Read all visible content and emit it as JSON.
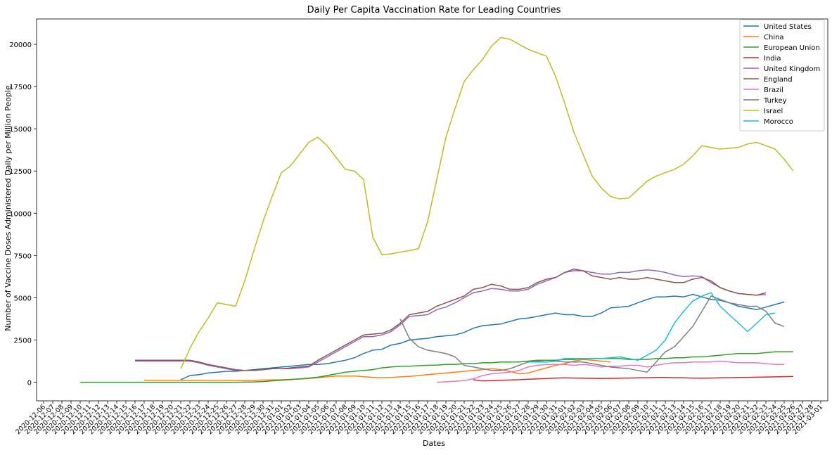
{
  "chart_data": {
    "type": "line",
    "title": "Daily Per Capita Vaccination Rate for Leading Countries",
    "xlabel": "Dates",
    "ylabel": "Number of Vaccine Doses Administered Daily per Million People",
    "ylim": [
      -1100,
      21500
    ],
    "yticks": [
      0,
      2500,
      5000,
      7500,
      10000,
      12500,
      15000,
      17500,
      20000
    ],
    "ytick_labels": [
      "0",
      "2500",
      "5000",
      "7500",
      "10000",
      "12500",
      "15000",
      "17500",
      "20000"
    ],
    "grid": false,
    "legend_position": "top-right",
    "x": [
      "2020-12-06",
      "2020-12-07",
      "2020-12-08",
      "2020-12-09",
      "2020-12-10",
      "2020-12-11",
      "2020-12-12",
      "2020-12-13",
      "2020-12-14",
      "2020-12-15",
      "2020-12-16",
      "2020-12-17",
      "2020-12-18",
      "2020-12-19",
      "2020-12-20",
      "2020-12-21",
      "2020-12-22",
      "2020-12-23",
      "2020-12-24",
      "2020-12-25",
      "2020-12-26",
      "2020-12-27",
      "2020-12-28",
      "2020-12-29",
      "2020-12-30",
      "2020-12-31",
      "2021-01-01",
      "2021-01-02",
      "2021-01-03",
      "2021-01-04",
      "2021-01-05",
      "2021-01-06",
      "2021-01-07",
      "2021-01-08",
      "2021-01-09",
      "2021-01-10",
      "2021-01-11",
      "2021-01-12",
      "2021-01-13",
      "2021-01-14",
      "2021-01-15",
      "2021-01-16",
      "2021-01-17",
      "2021-01-18",
      "2021-01-19",
      "2021-01-20",
      "2021-01-21",
      "2021-01-22",
      "2021-01-23",
      "2021-01-24",
      "2021-01-25",
      "2021-01-26",
      "2021-01-27",
      "2021-01-28",
      "2021-01-29",
      "2021-01-30",
      "2021-01-31",
      "2021-02-01",
      "2021-02-02",
      "2021-02-03",
      "2021-02-04",
      "2021-02-05",
      "2021-02-06",
      "2021-02-07",
      "2021-02-08",
      "2021-02-09",
      "2021-02-10",
      "2021-02-11",
      "2021-02-12",
      "2021-02-13",
      "2021-02-14",
      "2021-02-15",
      "2021-02-16",
      "2021-02-17",
      "2021-02-18",
      "2021-02-19",
      "2021-02-20",
      "2021-02-21",
      "2021-02-22",
      "2021-02-23",
      "2021-02-24",
      "2021-02-25",
      "2021-02-26",
      "2021-02-27",
      "2021-02-28",
      "2021-03-01"
    ],
    "x_tick_labels": [
      "2020-12-06",
      "2020-12-07",
      "2020-12-08",
      "2020-12-09",
      "2020-12-10",
      "2020-12-11",
      "2020-12-12",
      "2020-12-13",
      "2020-12-14",
      "2020-12-15",
      "2020-12-16",
      "2020-12-17",
      "2020-12-18",
      "2020-12-19",
      "2020-12-20",
      "2020-12-21",
      "2020-12-22",
      "2020-12-23",
      "2020-12-24",
      "2020-12-25",
      "2020-12-26",
      "2020-12-27",
      "2020-12-28",
      "2020-12-29",
      "2020-12-30",
      "2020-12-31",
      "2021-01-01",
      "2021-01-02",
      "2021-01-03",
      "2021-01-04",
      "2021-01-05",
      "2021-01-06",
      "2021-01-07",
      "2021-01-08",
      "2021-01-09",
      "2021-01-10",
      "2021-01-11",
      "2021-01-12",
      "2021-01-13",
      "2021-01-14",
      "2021-01-15",
      "2021-01-16",
      "2021-01-17",
      "2021-01-18",
      "2021-01-19",
      "2021-01-20",
      "2021-01-21",
      "2021-01-22",
      "2021-01-23",
      "2021-01-24",
      "2021-01-25",
      "2021-01-26",
      "2021-01-27",
      "2021-01-28",
      "2021-01-29",
      "2021-01-30",
      "2021-01-31",
      "2021-02-01",
      "2021-02-02",
      "2021-02-03",
      "2021-02-04",
      "2021-02-05",
      "2021-02-06",
      "2021-02-07",
      "2021-02-08",
      "2021-02-09",
      "2021-02-10",
      "2021-02-11",
      "2021-02-12",
      "2021-02-13",
      "2021-02-14",
      "2021-02-15",
      "2021-02-16",
      "2021-02-17",
      "2021-02-18",
      "2021-02-19",
      "2021-02-20",
      "2021-02-21",
      "2021-02-22",
      "2021-02-23",
      "2021-02-24",
      "2021-02-25",
      "2021-02-26",
      "2021-02-27",
      "2021-02-28",
      "2021-03-01"
    ],
    "series": [
      {
        "name": "United States",
        "color": "#1f77b4",
        "values": [
          null,
          null,
          null,
          null,
          null,
          null,
          null,
          null,
          null,
          null,
          null,
          null,
          null,
          null,
          null,
          150,
          400,
          450,
          550,
          600,
          650,
          650,
          700,
          750,
          800,
          850,
          900,
          950,
          1000,
          1050,
          1050,
          1100,
          1200,
          1300,
          1450,
          1700,
          1900,
          1950,
          2200,
          2300,
          2500,
          2550,
          2600,
          2700,
          2750,
          2800,
          2950,
          3200,
          3350,
          3400,
          3450,
          3600,
          3750,
          3800,
          3900,
          4000,
          4100,
          4000,
          4000,
          3900,
          3900,
          4100,
          4400,
          4450,
          4500,
          4700,
          4900,
          5050,
          5050,
          5100,
          5050,
          5200,
          5050,
          4900,
          4850,
          4700,
          4500,
          4400,
          4300,
          4450,
          4600,
          4750,
          null,
          null,
          null,
          null
        ]
      },
      {
        "name": "China",
        "color": "#ff7f0e",
        "values": [
          null,
          null,
          null,
          null,
          null,
          null,
          null,
          null,
          null,
          null,
          null,
          120,
          120,
          120,
          120,
          120,
          120,
          120,
          120,
          120,
          120,
          120,
          120,
          120,
          130,
          140,
          150,
          170,
          190,
          220,
          270,
          320,
          370,
          370,
          370,
          330,
          290,
          260,
          280,
          320,
          350,
          400,
          450,
          500,
          550,
          600,
          650,
          700,
          750,
          800,
          750,
          650,
          500,
          550,
          700,
          850,
          1000,
          1100,
          1250,
          1350,
          1300,
          1250,
          1200,
          null,
          null,
          null,
          null,
          null,
          null,
          null,
          null,
          null,
          null,
          null,
          null,
          null,
          null,
          null,
          null,
          null,
          null,
          null,
          null,
          null,
          null,
          null
        ]
      },
      {
        "name": "European Union",
        "color": "#2ca02c",
        "values": [
          null,
          null,
          null,
          null,
          0,
          0,
          0,
          0,
          0,
          0,
          0,
          0,
          0,
          0,
          0,
          0,
          0,
          0,
          0,
          0,
          0,
          0,
          10,
          20,
          40,
          80,
          120,
          160,
          200,
          250,
          300,
          400,
          500,
          600,
          650,
          700,
          750,
          850,
          900,
          950,
          950,
          980,
          1000,
          1020,
          1050,
          1050,
          1100,
          1100,
          1150,
          1150,
          1200,
          1200,
          1200,
          1250,
          1300,
          1300,
          1300,
          1350,
          1350,
          1400,
          1400,
          1400,
          1400,
          1400,
          1350,
          1350,
          1350,
          1400,
          1400,
          1450,
          1450,
          1500,
          1500,
          1550,
          1600,
          1650,
          1700,
          1700,
          1700,
          1750,
          1800,
          1800,
          1800,
          null,
          null,
          null
        ]
      },
      {
        "name": "India",
        "color": "#d62728",
        "values": [
          null,
          null,
          null,
          null,
          null,
          null,
          null,
          null,
          null,
          null,
          null,
          null,
          null,
          null,
          null,
          null,
          null,
          null,
          null,
          null,
          null,
          null,
          null,
          null,
          null,
          null,
          null,
          null,
          null,
          null,
          null,
          null,
          null,
          null,
          null,
          null,
          null,
          null,
          null,
          null,
          null,
          null,
          null,
          null,
          null,
          null,
          null,
          150,
          80,
          100,
          120,
          130,
          150,
          180,
          200,
          220,
          250,
          260,
          250,
          240,
          230,
          220,
          230,
          240,
          250,
          260,
          270,
          280,
          280,
          270,
          260,
          250,
          240,
          250,
          260,
          270,
          280,
          290,
          300,
          310,
          320,
          330,
          340,
          null,
          null,
          null
        ]
      },
      {
        "name": "United Kingdom",
        "color": "#9467bd",
        "values": [
          null,
          null,
          null,
          null,
          null,
          null,
          null,
          null,
          null,
          null,
          1250,
          1250,
          1250,
          1250,
          1250,
          1250,
          1250,
          1150,
          1000,
          900,
          800,
          700,
          700,
          700,
          750,
          800,
          800,
          800,
          850,
          900,
          1200,
          1500,
          1800,
          2100,
          2400,
          2700,
          2700,
          2800,
          3000,
          3400,
          3900,
          3950,
          4000,
          4300,
          4450,
          4700,
          5000,
          5300,
          5400,
          5550,
          5500,
          5400,
          5400,
          5500,
          5800,
          6000,
          6200,
          6500,
          6600,
          6600,
          6500,
          6400,
          6400,
          6500,
          6500,
          6600,
          6650,
          6600,
          6500,
          6350,
          6250,
          6300,
          6250,
          5900,
          5600,
          5400,
          5250,
          5200,
          5150,
          5200,
          null,
          null,
          null,
          null,
          null,
          null
        ]
      },
      {
        "name": "England",
        "color": "#8c564b",
        "values": [
          null,
          null,
          null,
          null,
          null,
          null,
          null,
          null,
          null,
          null,
          1300,
          1300,
          1300,
          1300,
          1300,
          1300,
          1300,
          1200,
          1050,
          950,
          850,
          750,
          700,
          700,
          750,
          800,
          800,
          850,
          900,
          950,
          1300,
          1600,
          1900,
          2200,
          2500,
          2800,
          2850,
          2900,
          3100,
          3500,
          4000,
          4100,
          4200,
          4500,
          4700,
          4900,
          5100,
          5500,
          5600,
          5800,
          5700,
          5500,
          5500,
          5600,
          5900,
          6100,
          6200,
          6500,
          6700,
          6600,
          6300,
          6200,
          6100,
          6200,
          6100,
          6100,
          6200,
          6100,
          6000,
          5900,
          5900,
          6100,
          6200,
          6000,
          5600,
          5400,
          5250,
          5200,
          5150,
          5300,
          null,
          null,
          null,
          null,
          null,
          null
        ]
      },
      {
        "name": "Brazil",
        "color": "#e377c2",
        "values": [
          null,
          null,
          null,
          null,
          null,
          null,
          null,
          null,
          null,
          null,
          null,
          null,
          null,
          null,
          null,
          null,
          null,
          null,
          null,
          null,
          null,
          null,
          null,
          null,
          null,
          null,
          null,
          null,
          null,
          null,
          null,
          null,
          null,
          null,
          null,
          null,
          null,
          null,
          null,
          null,
          null,
          null,
          null,
          0,
          30,
          60,
          100,
          200,
          400,
          500,
          550,
          600,
          700,
          900,
          1000,
          1050,
          1050,
          1050,
          1000,
          1050,
          1000,
          900,
          950,
          950,
          1000,
          1000,
          900,
          1000,
          1100,
          1150,
          1150,
          1200,
          1200,
          1200,
          1250,
          1200,
          1150,
          1150,
          1150,
          1100,
          1050,
          1050,
          null,
          null,
          null,
          null
        ]
      },
      {
        "name": "Turkey",
        "color": "#7f7f7f",
        "values": [
          null,
          null,
          null,
          null,
          null,
          null,
          null,
          null,
          null,
          null,
          null,
          null,
          null,
          null,
          null,
          null,
          null,
          null,
          null,
          null,
          null,
          null,
          null,
          null,
          null,
          null,
          null,
          null,
          null,
          null,
          null,
          null,
          null,
          null,
          null,
          null,
          null,
          null,
          null,
          3750,
          2600,
          2100,
          1900,
          1800,
          1700,
          1500,
          1000,
          900,
          800,
          700,
          700,
          800,
          1000,
          1200,
          1250,
          1200,
          1250,
          1200,
          1200,
          1200,
          1100,
          1000,
          900,
          850,
          800,
          700,
          600,
          1200,
          1800,
          2100,
          2700,
          3300,
          4200,
          5100,
          4900,
          4700,
          4600,
          4500,
          4500,
          4200,
          3500,
          3300,
          null,
          null,
          null,
          null
        ]
      },
      {
        "name": "Israel",
        "color": "#bcbd22",
        "values": [
          null,
          null,
          null,
          null,
          null,
          null,
          null,
          null,
          null,
          null,
          null,
          null,
          null,
          null,
          null,
          800,
          2000,
          3000,
          3800,
          4700,
          4600,
          4500,
          6000,
          7800,
          9500,
          11000,
          12400,
          12800,
          13500,
          14200,
          14500,
          14000,
          13300,
          12600,
          12500,
          12000,
          8600,
          7550,
          7600,
          7700,
          7800,
          7900,
          9500,
          12000,
          14500,
          16200,
          17800,
          18500,
          19100,
          19900,
          20400,
          20300,
          20000,
          19700,
          19500,
          19300,
          18100,
          16500,
          14800,
          13500,
          12200,
          11500,
          11000,
          10850,
          10900,
          11400,
          11900,
          12200,
          12400,
          12600,
          12900,
          13400,
          14000,
          13900,
          13800,
          13850,
          13900,
          14100,
          14200,
          14000,
          13800,
          13200,
          12500,
          null,
          null,
          null
        ]
      },
      {
        "name": "Morocco",
        "color": "#17becf",
        "values": [
          null,
          null,
          null,
          null,
          null,
          null,
          null,
          null,
          null,
          null,
          null,
          null,
          null,
          null,
          null,
          null,
          null,
          null,
          null,
          null,
          null,
          null,
          null,
          null,
          null,
          null,
          null,
          null,
          null,
          null,
          null,
          null,
          null,
          null,
          null,
          null,
          null,
          null,
          null,
          null,
          null,
          null,
          null,
          null,
          null,
          null,
          null,
          null,
          null,
          null,
          null,
          null,
          null,
          1200,
          1200,
          1200,
          1250,
          1400,
          1400,
          1400,
          1400,
          1400,
          1450,
          1500,
          1400,
          1300,
          1600,
          1900,
          2500,
          3500,
          4200,
          4800,
          5100,
          5300,
          4500,
          4000,
          3500,
          3000,
          3500,
          4000,
          4100,
          null,
          null,
          null,
          null,
          null
        ]
      }
    ]
  }
}
